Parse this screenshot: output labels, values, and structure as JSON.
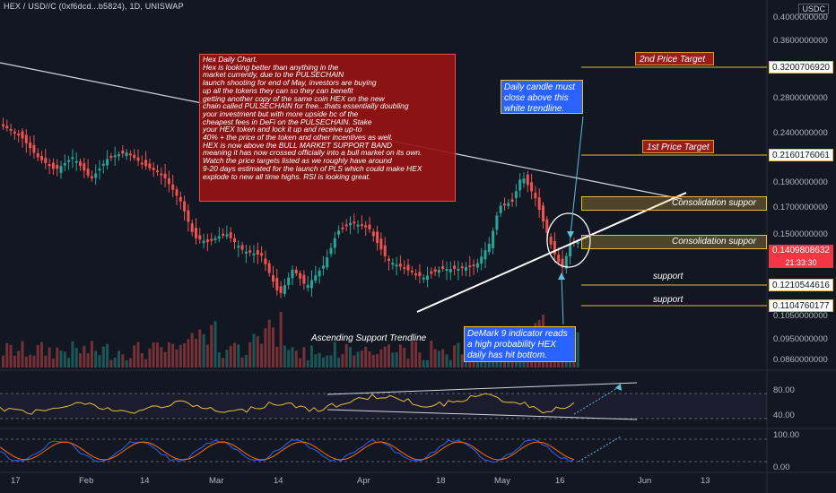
{
  "title": "HEX / USD//C (0xf6dcd...b5824), 1D, UNISWAP",
  "currency": "USDC",
  "note_lines": [
    "Hex Daily Chart.",
    "Hex is looking better than anything in the",
    "market currently, due to the PULSECHAIN",
    "launch shooting for end of May, investors are buying",
    "up all the tokens they can so they can benefit",
    "getting another copy of the same coin HEX on the new",
    "chain called PULSECHAIN for free...thats essentially doubling",
    "your investment but with more upside bc of the",
    "cheapest fees in DeFi on the PULSECHAIN. Stake",
    "your HEX token and lock it up and receive up-to",
    "40% + the price of the token and other incentives as well.",
    "HEX is now above the BULL MARKET SUPPORT BAND",
    "meaning it has now crossed officially into a bull market on its own.",
    "Watch the price targets listed as we roughly have around",
    "9-20 days estimated for the launch of PLS which could make HEX",
    "explode to new all time highs. RSI is looking great."
  ],
  "annotations": {
    "daily_candle": "Daily candle must close above this white trendline.",
    "price_target_2": "2nd Price Target",
    "price_target_1": "1st Price Target",
    "consolidation_1": "Consolidation suppor",
    "consolidation_2": "Consolidation suppor",
    "support_1": "support",
    "support_2": "support",
    "ascending": "Ascending Support Trendline",
    "demark": "DeMark 9 indicator reads a high probability HEX daily has hit bottom."
  },
  "price_tags": {
    "target2": "0.3200706920",
    "target1": "0.2160176061",
    "current": "0.1409808632",
    "countdown": "21:33:30",
    "support1": "0.1210544616",
    "support2": "0.1104760177"
  },
  "y_axis": [
    "0.4000000000",
    "0.3600000000",
    "0.2800000000",
    "0.2400000000",
    "0.1900000000",
    "0.1700000000",
    "0.1500000000",
    "0.1050000000",
    "0.0950000000",
    "0.0860000000"
  ],
  "rsi_axis": [
    "80.00",
    "40.00"
  ],
  "stoch_axis": [
    "100.00",
    "0.00"
  ],
  "x_axis": [
    "17",
    "Feb",
    "14",
    "Mar",
    "14",
    "Apr",
    "18",
    "May",
    "16",
    "Jun",
    "13"
  ],
  "colors": {
    "up": "#26a69a",
    "down": "#ef5350",
    "background": "#131722",
    "gold": "#e6be3c"
  }
}
